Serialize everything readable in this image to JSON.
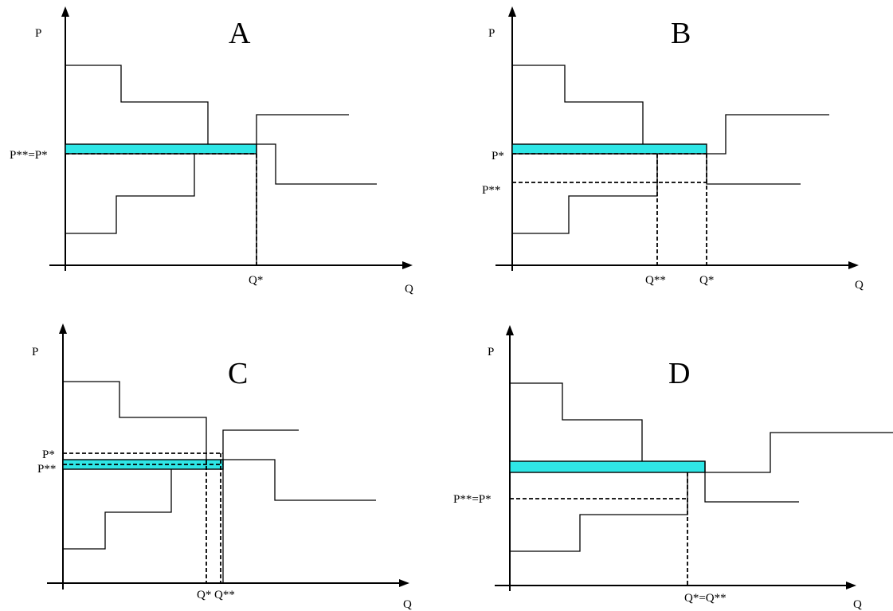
{
  "panels": [
    {
      "id": "A",
      "title": "A",
      "y_axis_label": "P",
      "x_axis_label": "Q",
      "price_labels": [
        "P**=P*"
      ],
      "quantity_labels": [
        "Q*"
      ]
    },
    {
      "id": "B",
      "title": "B",
      "y_axis_label": "P",
      "x_axis_label": "Q",
      "price_labels": [
        "P*",
        "P**"
      ],
      "quantity_labels": [
        "Q**",
        "Q*"
      ]
    },
    {
      "id": "C",
      "title": "C",
      "y_axis_label": "P",
      "x_axis_label": "Q",
      "price_labels": [
        "P*",
        "P**"
      ],
      "quantity_labels": [
        "Q*",
        "Q**"
      ]
    },
    {
      "id": "D",
      "title": "D",
      "y_axis_label": "P",
      "x_axis_label": "Q",
      "price_labels": [
        "P**=P*"
      ],
      "quantity_labels": [
        "Q*=Q**"
      ]
    }
  ],
  "colors": {
    "band_fill": "#2fe6e6",
    "line": "#000000",
    "background": "#ffffff"
  }
}
